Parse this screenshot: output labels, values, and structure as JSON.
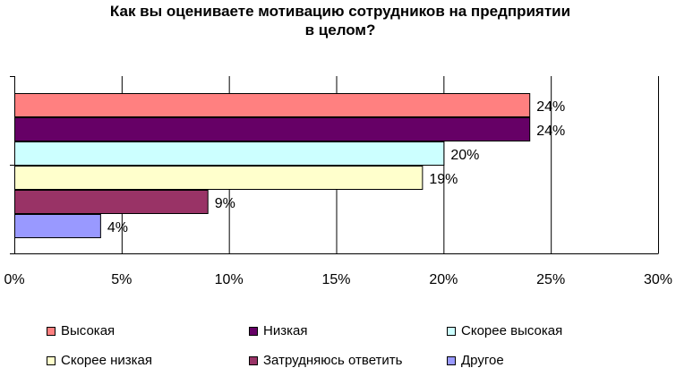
{
  "chart_data": {
    "type": "bar",
    "orientation": "horizontal",
    "title": [
      "Как вы оцениваете мотивацию сотрудников на предприятии",
      "в целом?"
    ],
    "xlim": [
      0,
      30
    ],
    "xticks": [
      0,
      5,
      10,
      15,
      20,
      25,
      30
    ],
    "xtick_labels": [
      "0%",
      "5%",
      "10%",
      "15%",
      "20%",
      "25%",
      "30%"
    ],
    "grid": true,
    "legend_position": "bottom",
    "series": [
      {
        "name": "Высокая",
        "value": 24,
        "label": "24%",
        "color": "#ff8080"
      },
      {
        "name": "Низкая",
        "value": 24,
        "label": "24%",
        "color": "#660066"
      },
      {
        "name": "Скорее высокая",
        "value": 20,
        "label": "20%",
        "color": "#ccffff"
      },
      {
        "name": "Скорее низкая",
        "value": 19,
        "label": "19%",
        "color": "#ffffcc"
      },
      {
        "name": "Затрудняюсь ответить",
        "value": 9,
        "label": "9%",
        "color": "#993366"
      },
      {
        "name": "Другое",
        "value": 4,
        "label": "4%",
        "color": "#9999ff"
      }
    ]
  }
}
